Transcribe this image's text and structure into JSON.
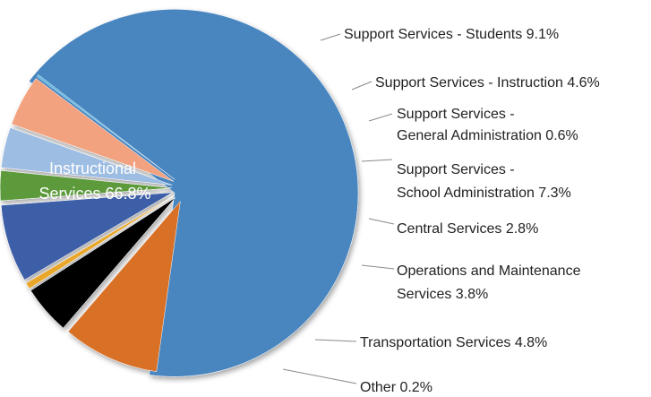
{
  "chart_data": {
    "type": "pie",
    "title": "",
    "exploded": true,
    "slices": [
      {
        "label": "Instructional Services",
        "value": 66.8,
        "display": "Instructional Services 66.8%",
        "color": "#4a86c0"
      },
      {
        "label": "Support Services - Students",
        "value": 9.1,
        "display": "Support Services - Students 9.1%",
        "color": "#d86f26"
      },
      {
        "label": "Support Services - Instruction",
        "value": 4.6,
        "display": "Support Services - Instruction 4.6%",
        "color": "#000000"
      },
      {
        "label": "Support Services - General Administration",
        "value": 0.6,
        "display": "Support Services - General Administration 0.6%",
        "color": "#e8a72b"
      },
      {
        "label": "Support Services - School Administration",
        "value": 7.3,
        "display": "Support Services - School Administration 7.3%",
        "color": "#3e5fa8"
      },
      {
        "label": "Central Services",
        "value": 2.8,
        "display": "Central Services 2.8%",
        "color": "#5b9a3b"
      },
      {
        "label": "Operations and Maintenance Services",
        "value": 3.8,
        "display": "Operations and Maintenance Services 3.8%",
        "color": "#9dbde3"
      },
      {
        "label": "Transportation Services",
        "value": 4.8,
        "display": "Transportation Services 4.8%",
        "color": "#f2a27f"
      },
      {
        "label": "Other",
        "value": 0.2,
        "display": "Other 0.2%",
        "color": "#5ab5e0"
      }
    ]
  }
}
